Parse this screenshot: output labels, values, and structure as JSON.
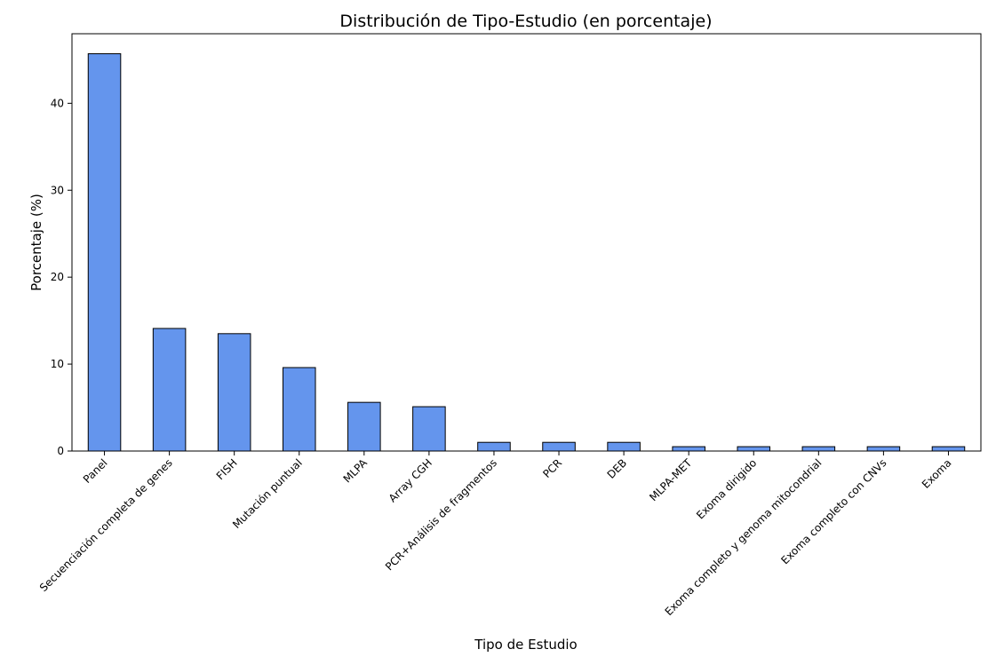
{
  "chart_data": {
    "type": "bar",
    "title": "Distribución de Tipo-Estudio (en porcentaje)",
    "xlabel": "Tipo de Estudio",
    "ylabel": "Porcentaje (%)",
    "categories": [
      "Panel",
      "Secuenciación completa de genes",
      "FISH",
      "Mutación puntual",
      "MLPA",
      "Array CGH",
      "PCR+Análisis de fragmentos",
      "PCR",
      "DEB",
      "MLPA-MET",
      "Exoma dirigido",
      "Exoma completo y genoma mitocondrial",
      "Exoma completo con CNVs",
      "Exoma"
    ],
    "values": [
      45.7,
      14.1,
      13.5,
      9.6,
      5.6,
      5.1,
      1.0,
      1.0,
      1.0,
      0.5,
      0.5,
      0.5,
      0.5,
      0.5
    ],
    "ylim": [
      0,
      48
    ],
    "yticks": [
      "0",
      "10",
      "20",
      "30",
      "40"
    ],
    "bar_color": "#6495ed",
    "edge_color": "#000000",
    "grid": false,
    "legend": "none"
  }
}
